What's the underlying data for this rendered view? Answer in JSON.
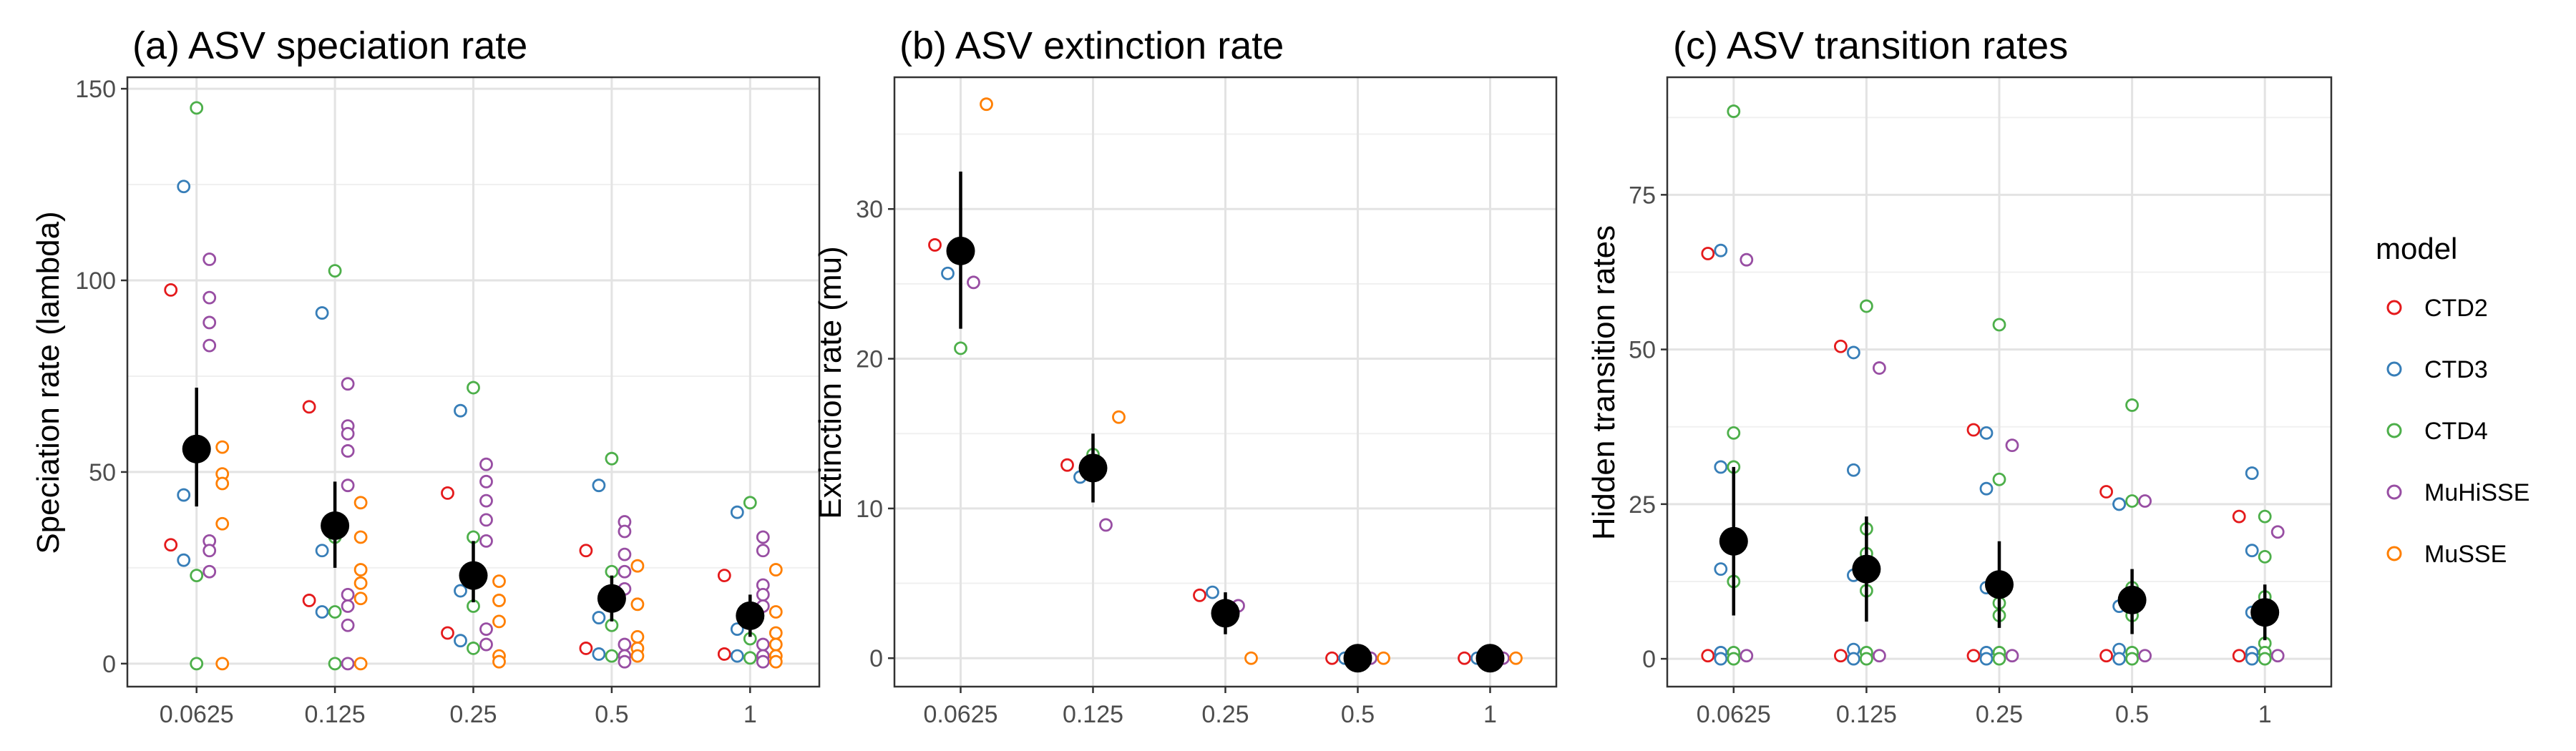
{
  "legend": {
    "title": "model",
    "entries": [
      {
        "name": "CTD2",
        "color": "#e41a1c"
      },
      {
        "name": "CTD3",
        "color": "#377eb8"
      },
      {
        "name": "CTD4",
        "color": "#4daf4a"
      },
      {
        "name": "MuHiSSE",
        "color": "#984ea3"
      },
      {
        "name": "MuSSE",
        "color": "#ff7f00"
      }
    ]
  },
  "chart_data": [
    {
      "type": "scatter",
      "title": "(a) ASV speciation rate",
      "xlabel": "",
      "ylabel": "Speciation rate (lambda)",
      "categories": [
        "0.0625",
        "0.125",
        "0.25",
        "0.5",
        "1"
      ],
      "ylim": [
        -6,
        153
      ],
      "yticks": [
        0,
        50,
        100,
        150
      ],
      "grid": true,
      "series": [
        {
          "name": "CTD2",
          "color": "#e41a1c",
          "values": [
            [
              97.5,
              31
            ],
            [
              67,
              16.5
            ],
            [
              44.5,
              8
            ],
            [
              29.5,
              4
            ],
            [
              23,
              2.5
            ]
          ]
        },
        {
          "name": "CTD3",
          "color": "#377eb8",
          "values": [
            [
              124.5,
              44,
              27
            ],
            [
              91.5,
              29.5,
              13.5
            ],
            [
              66,
              19,
              6
            ],
            [
              46.5,
              12,
              2.5
            ],
            [
              39.5,
              9,
              2
            ]
          ]
        },
        {
          "name": "CTD4",
          "color": "#4daf4a",
          "values": [
            [
              145,
              54,
              23,
              0
            ],
            [
              102.5,
              33,
              13.5,
              0
            ],
            [
              72,
              33,
              15,
              4
            ],
            [
              53.5,
              24,
              10,
              2
            ],
            [
              42,
              11,
              6.5,
              1.5
            ]
          ]
        },
        {
          "name": "MuHiSSE",
          "color": "#984ea3",
          "values": [
            [
              105.5,
              95.5,
              89,
              83,
              32,
              29.5,
              24
            ],
            [
              73,
              62,
              60,
              55.5,
              46.5,
              18,
              15,
              10,
              0
            ],
            [
              52,
              47.5,
              42.5,
              37.5,
              32,
              9,
              5
            ],
            [
              37,
              34.5,
              28.5,
              24,
              19.5,
              5,
              2,
              0.5
            ],
            [
              33,
              29.5,
              20.5,
              18,
              15,
              5,
              2,
              0.5
            ]
          ]
        },
        {
          "name": "MuSSE",
          "color": "#ff7f00",
          "values": [
            [
              56.5,
              49.5,
              47,
              36.5,
              0
            ],
            [
              42,
              33,
              24.5,
              21,
              17,
              0
            ],
            [
              21.5,
              16.5,
              11,
              2,
              0.5
            ],
            [
              25.5,
              15.5,
              7,
              4,
              2
            ],
            [
              24.5,
              13.5,
              8,
              5,
              2,
              0.5
            ]
          ]
        }
      ],
      "means": [
        {
          "mean": 56,
          "low": 41,
          "high": 72
        },
        {
          "mean": 36,
          "low": 25,
          "high": 47.5
        },
        {
          "mean": 23,
          "low": 16,
          "high": 32
        },
        {
          "mean": 17,
          "low": 11,
          "high": 23
        },
        {
          "mean": 12.5,
          "low": 7,
          "high": 18
        }
      ]
    },
    {
      "type": "scatter",
      "title": "(b) ASV extinction rate",
      "xlabel": "",
      "ylabel": "Extinction rate (mu)",
      "categories": [
        "0.0625",
        "0.125",
        "0.25",
        "0.5",
        "1"
      ],
      "ylim": [
        -1.9,
        38.8
      ],
      "yticks": [
        0,
        10,
        20,
        30
      ],
      "grid": true,
      "series": [
        {
          "name": "CTD2",
          "color": "#e41a1c",
          "values": [
            [
              27.6
            ],
            [
              12.9
            ],
            [
              4.2
            ],
            [
              0
            ],
            [
              0
            ]
          ]
        },
        {
          "name": "CTD3",
          "color": "#377eb8",
          "values": [
            [
              25.7
            ],
            [
              12.1
            ],
            [
              4.4
            ],
            [
              0
            ],
            [
              0
            ]
          ]
        },
        {
          "name": "CTD4",
          "color": "#4daf4a",
          "values": [
            [
              20.7
            ],
            [
              13.6
            ],
            [
              2.8
            ],
            [
              0
            ],
            [
              0
            ]
          ]
        },
        {
          "name": "MuHiSSE",
          "color": "#984ea3",
          "values": [
            [
              25.1
            ],
            [
              8.9
            ],
            [
              3.5
            ],
            [
              0
            ],
            [
              0
            ]
          ]
        },
        {
          "name": "MuSSE",
          "color": "#ff7f00",
          "values": [
            [
              37
            ],
            [
              16.1
            ],
            [
              0
            ],
            [
              0
            ],
            [
              0
            ]
          ]
        }
      ],
      "means": [
        {
          "mean": 27.2,
          "low": 22,
          "high": 32.5
        },
        {
          "mean": 12.7,
          "low": 10.4,
          "high": 15
        },
        {
          "mean": 3,
          "low": 1.6,
          "high": 4.4
        },
        {
          "mean": 0,
          "low": 0,
          "high": 0
        },
        {
          "mean": 0,
          "low": 0,
          "high": 0
        }
      ]
    },
    {
      "type": "scatter",
      "title": "(c) ASV transition rates",
      "xlabel": "",
      "ylabel": "Hidden transition rates",
      "categories": [
        "0.0625",
        "0.125",
        "0.25",
        "0.5",
        "1"
      ],
      "ylim": [
        -4.5,
        94
      ],
      "yticks": [
        0,
        25,
        50,
        75
      ],
      "grid": true,
      "series": [
        {
          "name": "CTD2",
          "color": "#e41a1c",
          "values": [
            [
              65.5,
              0.5
            ],
            [
              50.5,
              0.5
            ],
            [
              37,
              0.5
            ],
            [
              27,
              0.5
            ],
            [
              23,
              0.5
            ]
          ]
        },
        {
          "name": "CTD3",
          "color": "#377eb8",
          "values": [
            [
              66,
              31,
              14.5,
              1,
              0
            ],
            [
              49.5,
              30.5,
              13.5,
              1.5,
              0
            ],
            [
              36.5,
              27.5,
              11.5,
              1,
              0
            ],
            [
              25,
              25,
              8.5,
              1.5,
              0
            ],
            [
              30,
              17.5,
              7.5,
              1,
              0
            ]
          ]
        },
        {
          "name": "CTD4",
          "color": "#4daf4a",
          "values": [
            [
              88.5,
              36.5,
              31,
              12.5,
              1,
              0
            ],
            [
              57,
              21,
              17,
              11,
              1,
              0
            ],
            [
              54,
              29,
              9,
              7,
              1,
              0
            ],
            [
              41,
              25.5,
              11.5,
              7,
              1,
              0
            ],
            [
              23,
              16.5,
              10,
              2.5,
              1,
              0
            ]
          ]
        },
        {
          "name": "MuHiSSE",
          "color": "#984ea3",
          "values": [
            [
              64.5,
              0.5
            ],
            [
              47,
              0.5
            ],
            [
              34.5,
              0.5
            ],
            [
              25.5,
              0.5
            ],
            [
              20.5,
              0.5
            ]
          ]
        }
      ],
      "means": [
        {
          "mean": 19,
          "low": 7,
          "high": 31
        },
        {
          "mean": 14.5,
          "low": 6,
          "high": 23
        },
        {
          "mean": 12,
          "low": 5,
          "high": 19
        },
        {
          "mean": 9.5,
          "low": 4,
          "high": 14.5
        },
        {
          "mean": 7.5,
          "low": 3,
          "high": 12
        }
      ]
    }
  ]
}
